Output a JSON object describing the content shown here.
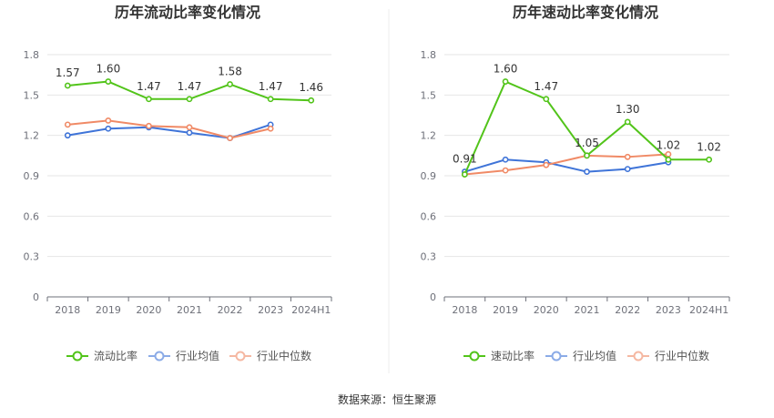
{
  "colors": {
    "company": "#52c41a",
    "industry_avg": "#3f74d8",
    "industry_median": "#f08a66",
    "grid": "#e6e6e6",
    "axis": "#6e7079"
  },
  "legend_icon": "circle-line-icon",
  "source_text": "数据来源：恒生聚源",
  "chart_data": [
    {
      "type": "line",
      "title": "历年流动比率变化情况",
      "categories": [
        "2018",
        "2019",
        "2020",
        "2021",
        "2022",
        "2023",
        "2024H1"
      ],
      "ylim": [
        0,
        1.8
      ],
      "yticks": [
        "0",
        "0.3",
        "0.6",
        "0.9",
        "1.2",
        "1.5",
        "1.8"
      ],
      "grid": true,
      "legend_position": "bottom-center",
      "series": [
        {
          "name": "流动比率",
          "key": "company",
          "values": [
            1.57,
            1.6,
            1.47,
            1.47,
            1.58,
            1.47,
            1.46
          ],
          "labels": [
            "1.57",
            "1.60",
            "1.47",
            "1.47",
            "1.58",
            "1.47",
            "1.46"
          ]
        },
        {
          "name": "行业均值",
          "key": "industry_avg",
          "values": [
            1.2,
            1.25,
            1.26,
            1.22,
            1.18,
            1.28,
            null
          ]
        },
        {
          "name": "行业中位数",
          "key": "industry_median",
          "values": [
            1.28,
            1.31,
            1.27,
            1.26,
            1.18,
            1.25,
            null
          ]
        }
      ]
    },
    {
      "type": "line",
      "title": "历年速动比率变化情况",
      "categories": [
        "2018",
        "2019",
        "2020",
        "2021",
        "2022",
        "2023",
        "2024H1"
      ],
      "ylim": [
        0,
        1.8
      ],
      "yticks": [
        "0",
        "0.3",
        "0.6",
        "0.9",
        "1.2",
        "1.5",
        "1.8"
      ],
      "grid": true,
      "legend_position": "bottom-center",
      "series": [
        {
          "name": "速动比率",
          "key": "company",
          "values": [
            0.91,
            1.6,
            1.47,
            1.05,
            1.3,
            1.02,
            1.02
          ],
          "labels": [
            "0.91",
            "1.60",
            "1.47",
            "1.05",
            "1.30",
            "1.02",
            "1.02"
          ]
        },
        {
          "name": "行业均值",
          "key": "industry_avg",
          "values": [
            0.93,
            1.02,
            1.0,
            0.93,
            0.95,
            1.0,
            null
          ]
        },
        {
          "name": "行业中位数",
          "key": "industry_median",
          "values": [
            0.91,
            0.94,
            0.98,
            1.05,
            1.04,
            1.06,
            null
          ]
        }
      ]
    }
  ]
}
